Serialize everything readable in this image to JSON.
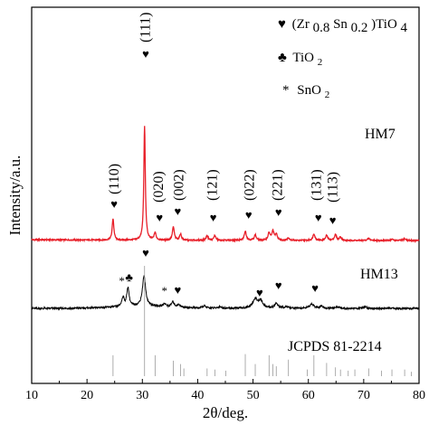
{
  "chart_data": {
    "type": "line",
    "xlabel": "2θ/deg.",
    "ylabel": "Intensity/a.u.",
    "xlim": [
      10,
      80
    ],
    "xticks": [
      10,
      20,
      30,
      40,
      50,
      60,
      70,
      80
    ],
    "xtick_labels": [
      "10",
      "20",
      "30",
      "40",
      "50",
      "60",
      "70",
      "80"
    ],
    "legend": {
      "placement": "top-right",
      "entries": [
        {
          "symbol": "♥",
          "label_main": "(Zr",
          "sub1": "0.8",
          "mid": "Sn",
          "sub2": "0.2",
          "tail": ")TiO",
          "sub3": "4"
        },
        {
          "symbol": "♣",
          "label_main": "TiO",
          "sub1": "2"
        },
        {
          "symbol": "*",
          "label_main": "SnO",
          "sub1": "2"
        }
      ]
    },
    "series": [
      {
        "name": "HM7",
        "color": "#e8202a",
        "peaks": [
          {
            "x": 24.7,
            "h": 0.52,
            "w": 0.18
          },
          {
            "x": 30.4,
            "h": 2.75,
            "w": 0.16
          },
          {
            "x": 32.3,
            "h": 0.18,
            "w": 0.2
          },
          {
            "x": 35.6,
            "h": 0.32,
            "w": 0.2
          },
          {
            "x": 36.9,
            "h": 0.15,
            "w": 0.2
          },
          {
            "x": 41.7,
            "h": 0.12,
            "w": 0.2
          },
          {
            "x": 43.1,
            "h": 0.12,
            "w": 0.2
          },
          {
            "x": 48.6,
            "h": 0.22,
            "w": 0.22
          },
          {
            "x": 50.4,
            "h": 0.13,
            "w": 0.22
          },
          {
            "x": 52.9,
            "h": 0.18,
            "w": 0.22
          },
          {
            "x": 53.6,
            "h": 0.22,
            "w": 0.22
          },
          {
            "x": 54.2,
            "h": 0.14,
            "w": 0.22
          },
          {
            "x": 56.4,
            "h": 0.06,
            "w": 0.25
          },
          {
            "x": 61.0,
            "h": 0.16,
            "w": 0.22
          },
          {
            "x": 63.3,
            "h": 0.12,
            "w": 0.22
          },
          {
            "x": 64.9,
            "h": 0.14,
            "w": 0.22
          },
          {
            "x": 65.8,
            "h": 0.08,
            "w": 0.22
          },
          {
            "x": 70.9,
            "h": 0.05,
            "w": 0.25
          },
          {
            "x": 75.1,
            "h": 0.03,
            "w": 0.25
          },
          {
            "x": 77.4,
            "h": 0.04,
            "w": 0.25
          }
        ]
      },
      {
        "name": "HM13",
        "color": "#000000",
        "peaks": [
          {
            "x": 26.5,
            "h": 0.22,
            "w": 0.25
          },
          {
            "x": 27.4,
            "h": 0.45,
            "w": 0.25
          },
          {
            "x": 30.3,
            "h": 0.72,
            "w": 0.35
          },
          {
            "x": 34.0,
            "h": 0.07,
            "w": 0.3
          },
          {
            "x": 35.5,
            "h": 0.12,
            "w": 0.3
          },
          {
            "x": 36.6,
            "h": 0.06,
            "w": 0.3
          },
          {
            "x": 41.2,
            "h": 0.05,
            "w": 0.35
          },
          {
            "x": 44.0,
            "h": 0.04,
            "w": 0.35
          },
          {
            "x": 50.4,
            "h": 0.22,
            "w": 0.55
          },
          {
            "x": 51.4,
            "h": 0.16,
            "w": 0.45
          },
          {
            "x": 54.2,
            "h": 0.12,
            "w": 0.35
          },
          {
            "x": 56.0,
            "h": 0.04,
            "w": 0.35
          },
          {
            "x": 60.6,
            "h": 0.1,
            "w": 0.45
          },
          {
            "x": 62.4,
            "h": 0.05,
            "w": 0.35
          },
          {
            "x": 65.3,
            "h": 0.04,
            "w": 0.35
          },
          {
            "x": 70.3,
            "h": 0.03,
            "w": 0.35
          }
        ]
      },
      {
        "name": "JCPDS 81-2214",
        "color": "#999999",
        "sticks": [
          {
            "x": 24.7,
            "h": 0.19
          },
          {
            "x": 30.4,
            "h": 1.0
          },
          {
            "x": 32.3,
            "h": 0.19
          },
          {
            "x": 35.6,
            "h": 0.14
          },
          {
            "x": 36.9,
            "h": 0.11
          },
          {
            "x": 37.5,
            "h": 0.07
          },
          {
            "x": 41.7,
            "h": 0.07
          },
          {
            "x": 43.1,
            "h": 0.06
          },
          {
            "x": 45.1,
            "h": 0.05
          },
          {
            "x": 48.6,
            "h": 0.2
          },
          {
            "x": 50.4,
            "h": 0.11
          },
          {
            "x": 52.9,
            "h": 0.19
          },
          {
            "x": 53.6,
            "h": 0.11
          },
          {
            "x": 54.2,
            "h": 0.09
          },
          {
            "x": 56.4,
            "h": 0.15
          },
          {
            "x": 59.8,
            "h": 0.06
          },
          {
            "x": 61.0,
            "h": 0.19
          },
          {
            "x": 63.3,
            "h": 0.12
          },
          {
            "x": 64.9,
            "h": 0.08
          },
          {
            "x": 65.8,
            "h": 0.06
          },
          {
            "x": 67.2,
            "h": 0.05
          },
          {
            "x": 68.4,
            "h": 0.06
          },
          {
            "x": 70.9,
            "h": 0.07
          },
          {
            "x": 73.2,
            "h": 0.05
          },
          {
            "x": 75.1,
            "h": 0.06
          },
          {
            "x": 77.4,
            "h": 0.06
          },
          {
            "x": 78.6,
            "h": 0.04
          }
        ]
      }
    ],
    "hkl_labels": [
      {
        "text": "(110)",
        "x": 24.7
      },
      {
        "text": "(111)",
        "x": 30.4
      },
      {
        "text": "(020)",
        "x": 32.7
      },
      {
        "text": "(002)",
        "x": 36.4
      },
      {
        "text": "(121)",
        "x": 42.5
      },
      {
        "text": "(022)",
        "x": 49.2
      },
      {
        "text": "(221)",
        "x": 54.2
      },
      {
        "text": "(131)",
        "x": 61.3
      },
      {
        "text": "(113)",
        "x": 64.2
      }
    ],
    "markers_hm7": [
      {
        "symbol": "♥",
        "x": 24.9
      },
      {
        "symbol": "♥",
        "x": 30.6
      },
      {
        "symbol": "♥",
        "x": 33.1
      },
      {
        "symbol": "♥",
        "x": 36.4
      },
      {
        "symbol": "♥",
        "x": 42.8
      },
      {
        "symbol": "♥",
        "x": 49.2
      },
      {
        "symbol": "♥",
        "x": 54.6
      },
      {
        "symbol": "♥",
        "x": 61.8
      },
      {
        "symbol": "♥",
        "x": 64.4
      }
    ],
    "markers_hm13": [
      {
        "symbol": "*",
        "x": 26.3
      },
      {
        "symbol": "♣",
        "x": 27.6
      },
      {
        "symbol": "♥",
        "x": 30.6
      },
      {
        "symbol": "*",
        "x": 34.0
      },
      {
        "symbol": "♥",
        "x": 36.4
      },
      {
        "symbol": "♥",
        "x": 51.2
      },
      {
        "symbol": "♥",
        "x": 54.6
      },
      {
        "symbol": "♥",
        "x": 61.2
      }
    ]
  }
}
